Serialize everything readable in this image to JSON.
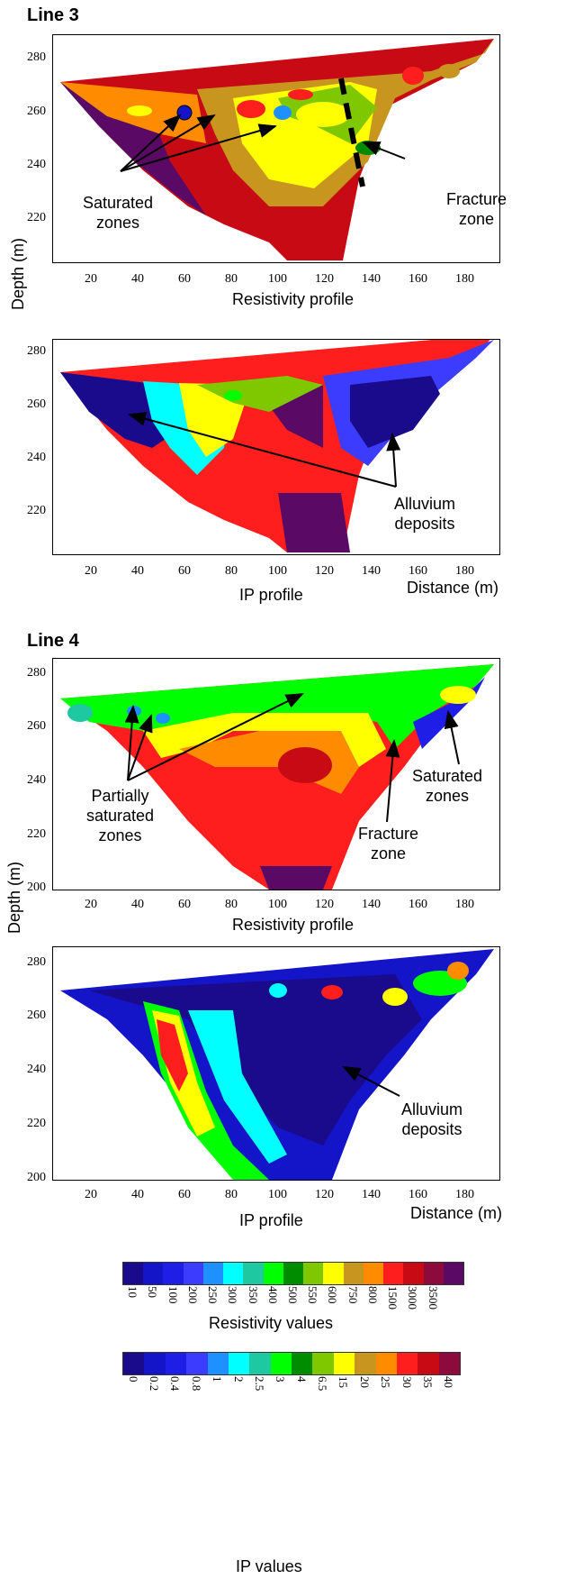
{
  "line3": {
    "title": "Line 3",
    "ylabel": "Depth (m)",
    "resistivity_caption": "Resistivity profile",
    "ip_caption": "IP profile",
    "distance_label": "Distance (m)",
    "res_yticks": [
      "280",
      "260",
      "240",
      "220"
    ],
    "ip_yticks": [
      "280",
      "260",
      "240",
      "220"
    ],
    "xticks": [
      "20",
      "40",
      "60",
      "80",
      "100",
      "120",
      "140",
      "160",
      "180"
    ],
    "ann_saturated": "Saturated\nzones",
    "ann_fracture": "Fracture\nzone",
    "ann_alluvium": "Alluvium\ndeposits"
  },
  "line4": {
    "title": "Line 4",
    "ylabel": "Depth (m)",
    "resistivity_caption": "Resistivity profile",
    "ip_caption": "IP profile",
    "distance_label": "Distance (m)",
    "res_yticks": [
      "280",
      "260",
      "240",
      "220",
      "200"
    ],
    "ip_yticks": [
      "280",
      "260",
      "240",
      "220",
      "200"
    ],
    "xticks": [
      "20",
      "40",
      "60",
      "80",
      "100",
      "120",
      "140",
      "160",
      "180"
    ],
    "ann_partial": "Partially\nsaturated\nzones",
    "ann_saturated": "Saturated\nzones",
    "ann_fracture": "Fracture\nzone",
    "ann_alluvium": "Alluvium\ndeposits"
  },
  "legend_resistivity": {
    "title": "Resistivity values",
    "labels": [
      "10",
      "50",
      "100",
      "200",
      "250",
      "300",
      "350",
      "400",
      "500",
      "550",
      "600",
      "750",
      "800",
      "1500",
      "3000",
      "3500"
    ],
    "colors": [
      "#1a0a8c",
      "#1414c8",
      "#1e1ee6",
      "#3c3cff",
      "#1e90ff",
      "#00ffff",
      "#1ec8a0",
      "#00ff00",
      "#008c00",
      "#7fc800",
      "#ffff00",
      "#c8961e",
      "#ff8c00",
      "#ff1e1e",
      "#c80a14",
      "#8c0a3c",
      "#5a0a64"
    ]
  },
  "legend_ip": {
    "title": "IP values",
    "labels": [
      "0",
      "0.2",
      "0.4",
      "0.8",
      "1",
      "2",
      "2.5",
      "3",
      "4",
      "6.5",
      "15",
      "20",
      "25",
      "30",
      "35",
      "40"
    ],
    "colors": [
      "#1a0a8c",
      "#1414c8",
      "#1e1ee6",
      "#3c3cff",
      "#1e90ff",
      "#00ffff",
      "#1ec8a0",
      "#00ff00",
      "#008c00",
      "#7fc800",
      "#ffff00",
      "#c8961e",
      "#ff8c00",
      "#ff1e1e",
      "#c80a14",
      "#8c0a3c"
    ]
  }
}
